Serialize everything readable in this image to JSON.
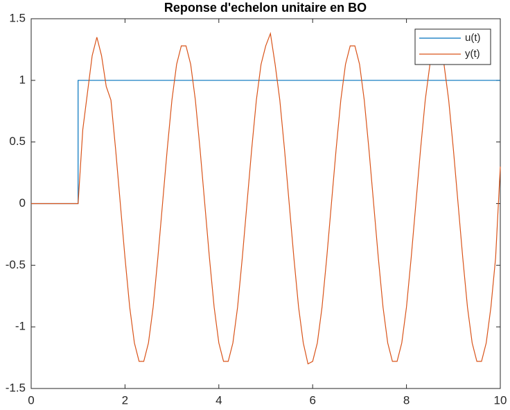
{
  "chart_data": {
    "type": "line",
    "title": "Reponse d'echelon unitaire en BO",
    "xlim": [
      0,
      10
    ],
    "xticks": [
      0,
      2,
      4,
      6,
      8,
      10
    ],
    "ylim": [
      -1.5,
      1.5
    ],
    "yticks": [
      -1.5,
      -1,
      -0.5,
      0,
      0.5,
      1,
      1.5
    ],
    "grid": false,
    "legend": "northeast",
    "series": [
      {
        "name": "u(t)",
        "color": "#0072BD",
        "x": [
          0,
          1,
          1,
          10
        ],
        "values": [
          0,
          0,
          1,
          1
        ]
      },
      {
        "name": "y(t)",
        "color": "#D95319",
        "x": [
          0,
          0.1,
          0.2,
          0.3,
          0.4,
          0.5,
          0.6,
          0.7,
          0.8,
          0.9,
          1,
          1.1,
          1.2,
          1.3,
          1.4,
          1.5,
          1.6,
          1.7,
          1.8,
          1.9,
          2,
          2.1,
          2.2,
          2.3,
          2.4,
          2.5,
          2.6,
          2.7,
          2.8,
          2.9,
          3,
          3.1,
          3.2,
          3.3,
          3.4,
          3.5,
          3.6,
          3.7,
          3.8,
          3.9,
          4,
          4.1,
          4.2,
          4.3,
          4.4,
          4.5,
          4.6,
          4.7,
          4.8,
          4.9,
          5,
          5.1,
          5.2,
          5.3,
          5.4,
          5.5,
          5.6,
          5.7,
          5.8,
          5.9,
          6,
          6.1,
          6.2,
          6.3,
          6.4,
          6.5,
          6.6,
          6.7,
          6.8,
          6.9,
          7,
          7.1,
          7.2,
          7.3,
          7.4,
          7.5,
          7.6,
          7.7,
          7.8,
          7.9,
          8,
          8.1,
          8.2,
          8.3,
          8.4,
          8.5,
          8.6,
          8.7,
          8.8,
          8.9,
          9,
          9.1,
          9.2,
          9.3,
          9.4,
          9.5,
          9.6,
          9.7,
          9.8,
          9.9,
          10
        ],
        "values": [
          0,
          0,
          0,
          0,
          0,
          0,
          0,
          0,
          0,
          0,
          0,
          0.6,
          0.9,
          1.2,
          1.35,
          1.2,
          0.95,
          0.84,
          0.44,
          0,
          -0.44,
          -0.84,
          -1.13,
          -1.28,
          -1.28,
          -1.13,
          -0.84,
          -0.44,
          0,
          0.44,
          0.84,
          1.13,
          1.28,
          1.28,
          1.13,
          0.84,
          0.44,
          0,
          -0.44,
          -0.84,
          -1.13,
          -1.28,
          -1.28,
          -1.13,
          -0.84,
          -0.44,
          0,
          0.44,
          0.84,
          1.13,
          1.28,
          1.38,
          1.13,
          0.84,
          0.44,
          0,
          -0.44,
          -0.84,
          -1.13,
          -1.3,
          -1.28,
          -1.13,
          -0.84,
          -0.44,
          0,
          0.44,
          0.84,
          1.13,
          1.28,
          1.28,
          1.13,
          0.84,
          0.44,
          0,
          -0.44,
          -0.84,
          -1.13,
          -1.28,
          -1.28,
          -1.13,
          -0.84,
          -0.44,
          0,
          0.44,
          0.84,
          1.13,
          1.28,
          1.2,
          1.13,
          0.84,
          0.44,
          0,
          -0.44,
          -0.84,
          -1.13,
          -1.28,
          -1.28,
          -1.13,
          -0.84,
          -0.44,
          0.3
        ]
      }
    ]
  }
}
